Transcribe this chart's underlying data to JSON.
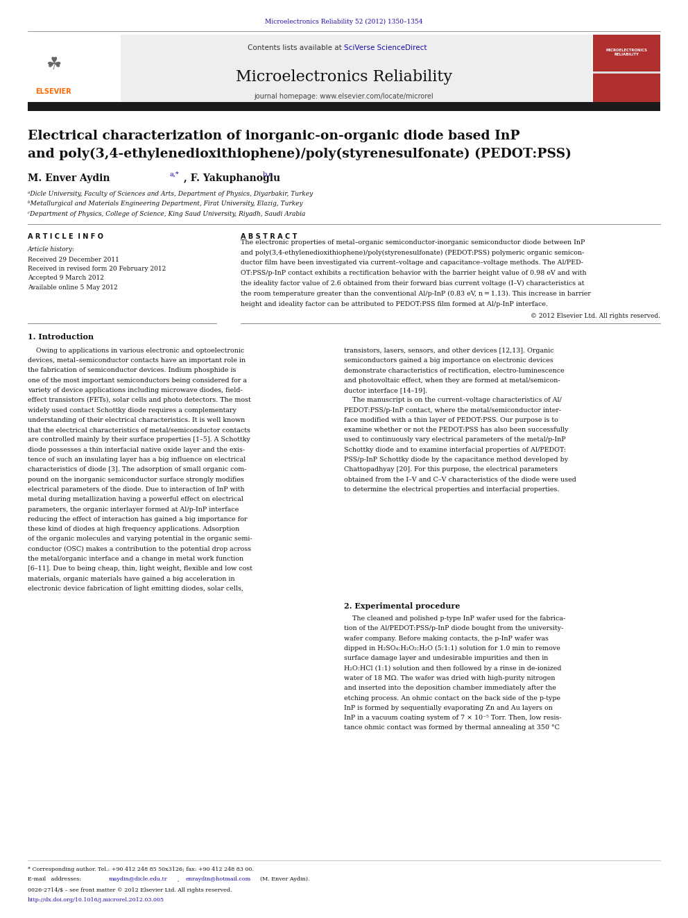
{
  "page_width": 9.92,
  "page_height": 13.23,
  "background_color": "#ffffff",
  "journal_ref": "Microelectronics Reliability 52 (2012) 1350–1354",
  "journal_ref_color": "#1a0dab",
  "journal_title": "Microelectronics Reliability",
  "journal_url": "journal homepage: www.elsevier.com/locate/microrel",
  "paper_title_line1": "Electrical characterization of inorganic-on-organic diode based InP",
  "paper_title_line2": "and poly(3,4-ethylenedioxithiophene)/poly(styrenesulfonate) (PEDOT:PSS)",
  "authors": "M. Enver Aydin",
  "authors_super": "a,*",
  "authors2": ", F. Yakuphanoglu",
  "authors2_super": "b,c",
  "affil_a": "ᵃDicle University, Faculty of Sciences and Arts, Department of Physics, Diyarbakir, Turkey",
  "affil_b": "ᵇMetallurgical and Materials Engineering Department, Firat University, Elazig, Turkey",
  "affil_c": "ᶜDepartment of Physics, College of Science, King Saud University, Riyadh, Saudi Arabia",
  "section_article_info": "A R T I C L E  I N F O",
  "section_abstract": "A B S T R A C T",
  "article_history_title": "Article history:",
  "received": "Received 29 December 2011",
  "revised": "Received in revised form 20 February 2012",
  "accepted": "Accepted 9 March 2012",
  "available": "Available online 5 May 2012",
  "copyright": "© 2012 Elsevier Ltd. All rights reserved.",
  "intro_title": "1. Introduction",
  "section2_title": "2. Experimental procedure",
  "footer_corresp": "* Corresponding author. Tel.: +90 412 248 85 50x3126; fax: +90 412 248 83 00.",
  "footer_email_label": "E-mail   addresses:",
  "footer_email1": "maydin@dicle.edu.tr",
  "footer_email2": "enraydin@hotmail.com",
  "footer_name": "(M. Enver Aydin).",
  "footer_issn": "0026-2714/$ – see front matter © 2012 Elsevier Ltd. All rights reserved.",
  "footer_doi": "http://dx.doi.org/10.1016/j.microrel.2012.03.005",
  "elsevier_color": "#ff6600",
  "link_color": "#1a0dab",
  "black_bar_color": "#1a1a1a",
  "abstract_lines": [
    "The electronic properties of metal–organic semiconductor-inorganic semiconductor diode between InP",
    "and poly(3,4-ethylenedioxithiophene)/poly(styrenesulfonate) (PEDOT:PSS) polymeric organic semicon-",
    "ductor film have been investigated via current–voltage and capacitance–voltage methods. The Al/PED-",
    "OT:PSS/p-InP contact exhibits a rectification behavior with the barrier height value of 0.98 eV and with",
    "the ideality factor value of 2.6 obtained from their forward bias current voltage (I–V) characteristics at",
    "the room temperature greater than the conventional Al/p-InP (0.83 eV, n = 1.13). This increase in barrier",
    "height and ideality factor can be attributed to PEDOT:PSS film formed at Al/p-InP interface."
  ],
  "intro1_lines": [
    "    Owing to applications in various electronic and optoelectronic",
    "devices, metal–semiconductor contacts have an important role in",
    "the fabrication of semiconductor devices. Indium phosphide is",
    "one of the most important semiconductors being considered for a",
    "variety of device applications including microwave diodes, field-",
    "effect transistors (FETs), solar cells and photo detectors. The most",
    "widely used contact Schottky diode requires a complementary",
    "understanding of their electrical characteristics. It is well known",
    "that the electrical characteristics of metal/semiconductor contacts",
    "are controlled mainly by their surface properties [1–5]. A Schottky",
    "diode possesses a thin interfacial native oxide layer and the exis-",
    "tence of such an insulating layer has a big influence on electrical",
    "characteristics of diode [3]. The adsorption of small organic com-",
    "pound on the inorganic semiconductor surface strongly modifies",
    "electrical parameters of the diode. Due to interaction of InP with",
    "metal during metallization having a powerful effect on electrical",
    "parameters, the organic interlayer formed at Al/p-InP interface",
    "reducing the effect of interaction has gained a big importance for",
    "these kind of diodes at high frequency applications. Adsorption",
    "of the organic molecules and varying potential in the organic semi-",
    "conductor (OSC) makes a contribution to the potential drop across",
    "the metal/organic interface and a change in metal work function",
    "[6–11]. Due to being cheap, thin, light weight, flexible and low cost",
    "materials, organic materials have gained a big acceleration in",
    "electronic device fabrication of light emitting diodes, solar cells,"
  ],
  "intro2_lines": [
    "transistors, lasers, sensors, and other devices [12,13]. Organic",
    "semiconductors gained a big importance on electronic devices",
    "demonstrate characteristics of rectification, electro-luminescence",
    "and photovoltaic effect, when they are formed at metal/semicon-",
    "ductor interface [14–19].",
    "    The manuscript is on the current–voltage characteristics of Al/",
    "PEDOT:PSS/p-InP contact, where the metal/semiconductor inter-",
    "face modified with a thin layer of PEDOT:PSS. Our purpose is to",
    "examine whether or not the PEDOT:PSS has also been successfully",
    "used to continuously vary electrical parameters of the metal/p-InP",
    "Schottky diode and to examine interfacial properties of Al/PEDOT:",
    "PSS/p-InP Schottky diode by the capacitance method developed by",
    "Chattopadhyay [20]. For this purpose, the electrical parameters",
    "obtained from the I–V and C–V characteristics of the diode were used",
    "to determine the electrical properties and interfacial properties."
  ],
  "section2_lines": [
    "    The cleaned and polished p-type InP wafer used for the fabrica-",
    "tion of the Al/PEDOT:PSS/p-InP diode bought from the university-",
    "wafer company. Before making contacts, the p-InP wafer was",
    "dipped in H₂SO₄:H₂O₂:H₂O (5:1:1) solution for 1.0 min to remove",
    "surface damage layer and undesirable impurities and then in",
    "H₂O:HCl (1:1) solution and then followed by a rinse in de-ionized",
    "water of 18 MΩ. The wafer was dried with high-purity nitrogen",
    "and inserted into the deposition chamber immediately after the",
    "etching process. An ohmic contact on the back side of the p-type",
    "InP is formed by sequentially evaporating Zn and Au layers on",
    "InP in a vacuum coating system of 7 × 10⁻⁵ Torr. Then, low resis-",
    "tance ohmic contact was formed by thermal annealing at 350 °C"
  ]
}
